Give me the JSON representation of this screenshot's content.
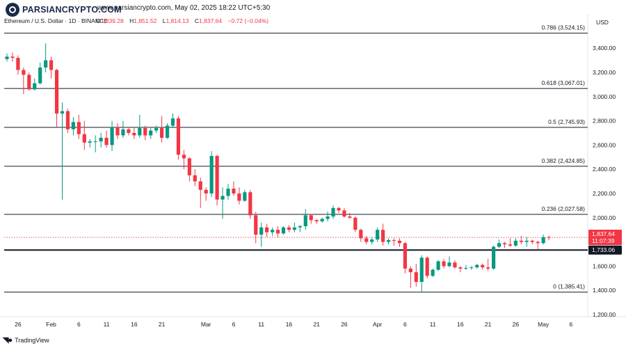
{
  "logo": {
    "text": "PARSIANCRYPTO.COM"
  },
  "headline": "www.parsiancrypto.com, May 02, 2025 18:22 UTC+5:30",
  "symbol": "Ethereum / U.S. Dollar · 1D · BINANCE",
  "ohlc": {
    "o_label": "O",
    "o": "1,839.28",
    "h_label": "H",
    "h": "1,851.52",
    "l_label": "L",
    "l": "1,814.13",
    "c_label": "C",
    "c": "1,837.64",
    "change": "−0.72 (−0.04%)"
  },
  "currency": "USD",
  "brand": {
    "text": "TradingView",
    "icon": "tradingview-logo-icon"
  },
  "colors": {
    "up": "#089981",
    "down": "#f23645",
    "level": "#131722",
    "grid_text": "#131722",
    "price_tag": "#f23645",
    "support_tag": "#131722"
  },
  "chart_data": {
    "type": "candlestick",
    "symbol": "ETHUSD",
    "timeframe": "1D",
    "ylim": [
      1200,
      3580
    ],
    "y_ticks": [
      "3,400.00",
      "3,200.00",
      "3,000.00",
      "2,800.00",
      "2,600.00",
      "2,400.00",
      "2,200.00",
      "2,000.00",
      "1,800.00",
      "1,600.00",
      "1,400.00",
      "1,200.00"
    ],
    "y_tick_values": [
      3400,
      3200,
      3000,
      2800,
      2600,
      2400,
      2200,
      2000,
      1800,
      1600,
      1400,
      1200
    ],
    "x_ticks": [
      {
        "label": "26",
        "date": "2025-01-26"
      },
      {
        "label": "Feb",
        "date": "2025-02-01"
      },
      {
        "label": "6",
        "date": "2025-02-06"
      },
      {
        "label": "11",
        "date": "2025-02-11"
      },
      {
        "label": "16",
        "date": "2025-02-16"
      },
      {
        "label": "21",
        "date": "2025-02-21"
      },
      {
        "label": "Mar",
        "date": "2025-03-01"
      },
      {
        "label": "6",
        "date": "2025-03-06"
      },
      {
        "label": "11",
        "date": "2025-03-11"
      },
      {
        "label": "16",
        "date": "2025-03-16"
      },
      {
        "label": "21",
        "date": "2025-03-21"
      },
      {
        "label": "26",
        "date": "2025-03-26"
      },
      {
        "label": "Apr",
        "date": "2025-04-01"
      },
      {
        "label": "6",
        "date": "2025-04-06"
      },
      {
        "label": "11",
        "date": "2025-04-11"
      },
      {
        "label": "16",
        "date": "2025-04-16"
      },
      {
        "label": "21",
        "date": "2025-04-21"
      },
      {
        "label": "26",
        "date": "2025-04-26"
      },
      {
        "label": "May",
        "date": "2025-05-01"
      },
      {
        "label": "6",
        "date": "2025-05-06"
      }
    ],
    "fib_levels": [
      {
        "label": "0.786 (3,524.15)",
        "value": 3524.15
      },
      {
        "label": "0.618 (3,067.01)",
        "value": 3067.01
      },
      {
        "label": "0.5 (2,745.93)",
        "value": 2745.93
      },
      {
        "label": "0.382 (2,424.85)",
        "value": 2424.85
      },
      {
        "label": "0.236 (2,027.58)",
        "value": 2027.58
      },
      {
        "label": "0 (1,385.41)",
        "value": 1385.41
      }
    ],
    "support_line": {
      "value": 1733.06,
      "label": "1,733.06"
    },
    "last_price": {
      "value": 1837.64,
      "label": "1,837.64",
      "countdown": "11:07:39"
    },
    "candles": [
      {
        "date": "2025-01-24",
        "o": 3310,
        "h": 3355,
        "l": 3290,
        "c": 3330
      },
      {
        "date": "2025-01-25",
        "o": 3330,
        "h": 3365,
        "l": 3290,
        "c": 3320
      },
      {
        "date": "2025-01-26",
        "o": 3320,
        "h": 3340,
        "l": 3180,
        "c": 3220
      },
      {
        "date": "2025-01-27",
        "o": 3220,
        "h": 3240,
        "l": 3020,
        "c": 3180
      },
      {
        "date": "2025-01-28",
        "o": 3180,
        "h": 3200,
        "l": 3050,
        "c": 3060
      },
      {
        "date": "2025-01-29",
        "o": 3060,
        "h": 3150,
        "l": 3050,
        "c": 3110
      },
      {
        "date": "2025-01-30",
        "o": 3110,
        "h": 3280,
        "l": 3100,
        "c": 3240
      },
      {
        "date": "2025-01-31",
        "o": 3240,
        "h": 3440,
        "l": 3200,
        "c": 3300
      },
      {
        "date": "2025-02-01",
        "o": 3300,
        "h": 3330,
        "l": 3150,
        "c": 3220
      },
      {
        "date": "2025-02-02",
        "o": 3220,
        "h": 3230,
        "l": 2750,
        "c": 2860
      },
      {
        "date": "2025-02-03",
        "o": 2860,
        "h": 2950,
        "l": 2150,
        "c": 2880
      },
      {
        "date": "2025-02-04",
        "o": 2880,
        "h": 2900,
        "l": 2700,
        "c": 2730
      },
      {
        "date": "2025-02-05",
        "o": 2730,
        "h": 2830,
        "l": 2680,
        "c": 2790
      },
      {
        "date": "2025-02-06",
        "o": 2790,
        "h": 2850,
        "l": 2650,
        "c": 2690
      },
      {
        "date": "2025-02-07",
        "o": 2690,
        "h": 2800,
        "l": 2560,
        "c": 2620
      },
      {
        "date": "2025-02-08",
        "o": 2620,
        "h": 2650,
        "l": 2580,
        "c": 2630
      },
      {
        "date": "2025-02-09",
        "o": 2630,
        "h": 2680,
        "l": 2540,
        "c": 2630
      },
      {
        "date": "2025-02-10",
        "o": 2630,
        "h": 2700,
        "l": 2580,
        "c": 2660
      },
      {
        "date": "2025-02-11",
        "o": 2660,
        "h": 2720,
        "l": 2580,
        "c": 2600
      },
      {
        "date": "2025-02-12",
        "o": 2600,
        "h": 2800,
        "l": 2550,
        "c": 2750
      },
      {
        "date": "2025-02-13",
        "o": 2750,
        "h": 2780,
        "l": 2650,
        "c": 2680
      },
      {
        "date": "2025-02-14",
        "o": 2680,
        "h": 2800,
        "l": 2660,
        "c": 2730
      },
      {
        "date": "2025-02-15",
        "o": 2730,
        "h": 2740,
        "l": 2680,
        "c": 2700
      },
      {
        "date": "2025-02-16",
        "o": 2700,
        "h": 2740,
        "l": 2650,
        "c": 2680
      },
      {
        "date": "2025-02-17",
        "o": 2680,
        "h": 2850,
        "l": 2660,
        "c": 2740
      },
      {
        "date": "2025-02-18",
        "o": 2740,
        "h": 2760,
        "l": 2640,
        "c": 2680
      },
      {
        "date": "2025-02-19",
        "o": 2680,
        "h": 2740,
        "l": 2650,
        "c": 2720
      },
      {
        "date": "2025-02-20",
        "o": 2720,
        "h": 2760,
        "l": 2700,
        "c": 2740
      },
      {
        "date": "2025-02-21",
        "o": 2740,
        "h": 2840,
        "l": 2620,
        "c": 2660
      },
      {
        "date": "2025-02-22",
        "o": 2660,
        "h": 2780,
        "l": 2650,
        "c": 2760
      },
      {
        "date": "2025-02-23",
        "o": 2760,
        "h": 2860,
        "l": 2740,
        "c": 2820
      },
      {
        "date": "2025-02-24",
        "o": 2820,
        "h": 2840,
        "l": 2480,
        "c": 2520
      },
      {
        "date": "2025-02-25",
        "o": 2520,
        "h": 2560,
        "l": 2400,
        "c": 2490
      },
      {
        "date": "2025-02-26",
        "o": 2490,
        "h": 2500,
        "l": 2300,
        "c": 2350
      },
      {
        "date": "2025-02-27",
        "o": 2350,
        "h": 2400,
        "l": 2260,
        "c": 2300
      },
      {
        "date": "2025-02-28",
        "o": 2300,
        "h": 2330,
        "l": 2080,
        "c": 2230
      },
      {
        "date": "2025-03-01",
        "o": 2230,
        "h": 2250,
        "l": 2140,
        "c": 2200
      },
      {
        "date": "2025-03-02",
        "o": 2200,
        "h": 2550,
        "l": 2170,
        "c": 2510
      },
      {
        "date": "2025-03-03",
        "o": 2510,
        "h": 2520,
        "l": 2100,
        "c": 2150
      },
      {
        "date": "2025-03-04",
        "o": 2150,
        "h": 2250,
        "l": 1990,
        "c": 2180
      },
      {
        "date": "2025-03-05",
        "o": 2180,
        "h": 2280,
        "l": 2150,
        "c": 2240
      },
      {
        "date": "2025-03-06",
        "o": 2240,
        "h": 2300,
        "l": 2180,
        "c": 2200
      },
      {
        "date": "2025-03-07",
        "o": 2200,
        "h": 2250,
        "l": 2110,
        "c": 2140
      },
      {
        "date": "2025-03-08",
        "o": 2140,
        "h": 2230,
        "l": 2130,
        "c": 2210
      },
      {
        "date": "2025-03-09",
        "o": 2210,
        "h": 2230,
        "l": 1990,
        "c": 2020
      },
      {
        "date": "2025-03-10",
        "o": 2020,
        "h": 2050,
        "l": 1790,
        "c": 1860
      },
      {
        "date": "2025-03-11",
        "o": 1860,
        "h": 1960,
        "l": 1760,
        "c": 1920
      },
      {
        "date": "2025-03-12",
        "o": 1920,
        "h": 1950,
        "l": 1840,
        "c": 1880
      },
      {
        "date": "2025-03-13",
        "o": 1880,
        "h": 1920,
        "l": 1850,
        "c": 1900
      },
      {
        "date": "2025-03-14",
        "o": 1900,
        "h": 1930,
        "l": 1840,
        "c": 1870
      },
      {
        "date": "2025-03-15",
        "o": 1870,
        "h": 1930,
        "l": 1860,
        "c": 1920
      },
      {
        "date": "2025-03-16",
        "o": 1920,
        "h": 1940,
        "l": 1880,
        "c": 1900
      },
      {
        "date": "2025-03-17",
        "o": 1900,
        "h": 1960,
        "l": 1880,
        "c": 1920
      },
      {
        "date": "2025-03-18",
        "o": 1920,
        "h": 1940,
        "l": 1880,
        "c": 1930
      },
      {
        "date": "2025-03-19",
        "o": 1930,
        "h": 2070,
        "l": 1900,
        "c": 2020
      },
      {
        "date": "2025-03-20",
        "o": 2020,
        "h": 2030,
        "l": 1950,
        "c": 1980
      },
      {
        "date": "2025-03-21",
        "o": 1980,
        "h": 1990,
        "l": 1950,
        "c": 1970
      },
      {
        "date": "2025-03-22",
        "o": 1970,
        "h": 2000,
        "l": 1960,
        "c": 1990
      },
      {
        "date": "2025-03-23",
        "o": 1990,
        "h": 2050,
        "l": 1970,
        "c": 2010
      },
      {
        "date": "2025-03-24",
        "o": 2010,
        "h": 2100,
        "l": 1990,
        "c": 2080
      },
      {
        "date": "2025-03-25",
        "o": 2080,
        "h": 2090,
        "l": 2040,
        "c": 2060
      },
      {
        "date": "2025-03-26",
        "o": 2060,
        "h": 2080,
        "l": 2000,
        "c": 2010
      },
      {
        "date": "2025-03-27",
        "o": 2010,
        "h": 2040,
        "l": 1990,
        "c": 2000
      },
      {
        "date": "2025-03-28",
        "o": 2000,
        "h": 2010,
        "l": 1880,
        "c": 1900
      },
      {
        "date": "2025-03-29",
        "o": 1900,
        "h": 1910,
        "l": 1800,
        "c": 1830
      },
      {
        "date": "2025-03-30",
        "o": 1830,
        "h": 1850,
        "l": 1780,
        "c": 1800
      },
      {
        "date": "2025-03-31",
        "o": 1800,
        "h": 1840,
        "l": 1780,
        "c": 1820
      },
      {
        "date": "2025-04-01",
        "o": 1820,
        "h": 1920,
        "l": 1800,
        "c": 1900
      },
      {
        "date": "2025-04-02",
        "o": 1900,
        "h": 1950,
        "l": 1770,
        "c": 1800
      },
      {
        "date": "2025-04-03",
        "o": 1800,
        "h": 1830,
        "l": 1780,
        "c": 1815
      },
      {
        "date": "2025-04-04",
        "o": 1815,
        "h": 1830,
        "l": 1770,
        "c": 1810
      },
      {
        "date": "2025-04-05",
        "o": 1810,
        "h": 1830,
        "l": 1760,
        "c": 1790
      },
      {
        "date": "2025-04-06",
        "o": 1790,
        "h": 1800,
        "l": 1540,
        "c": 1580
      },
      {
        "date": "2025-04-07",
        "o": 1580,
        "h": 1600,
        "l": 1420,
        "c": 1550
      },
      {
        "date": "2025-04-08",
        "o": 1550,
        "h": 1620,
        "l": 1430,
        "c": 1470
      },
      {
        "date": "2025-04-09",
        "o": 1470,
        "h": 1690,
        "l": 1390,
        "c": 1670
      },
      {
        "date": "2025-04-10",
        "o": 1670,
        "h": 1680,
        "l": 1500,
        "c": 1520
      },
      {
        "date": "2025-04-11",
        "o": 1520,
        "h": 1580,
        "l": 1510,
        "c": 1570
      },
      {
        "date": "2025-04-12",
        "o": 1570,
        "h": 1650,
        "l": 1560,
        "c": 1640
      },
      {
        "date": "2025-04-13",
        "o": 1640,
        "h": 1660,
        "l": 1580,
        "c": 1600
      },
      {
        "date": "2025-04-14",
        "o": 1600,
        "h": 1680,
        "l": 1590,
        "c": 1630
      },
      {
        "date": "2025-04-15",
        "o": 1630,
        "h": 1650,
        "l": 1580,
        "c": 1590
      },
      {
        "date": "2025-04-16",
        "o": 1590,
        "h": 1600,
        "l": 1550,
        "c": 1580
      },
      {
        "date": "2025-04-17",
        "o": 1580,
        "h": 1610,
        "l": 1570,
        "c": 1585
      },
      {
        "date": "2025-04-18",
        "o": 1585,
        "h": 1600,
        "l": 1570,
        "c": 1590
      },
      {
        "date": "2025-04-19",
        "o": 1590,
        "h": 1620,
        "l": 1580,
        "c": 1610
      },
      {
        "date": "2025-04-20",
        "o": 1610,
        "h": 1620,
        "l": 1570,
        "c": 1590
      },
      {
        "date": "2025-04-21",
        "o": 1590,
        "h": 1660,
        "l": 1560,
        "c": 1580
      },
      {
        "date": "2025-04-22",
        "o": 1580,
        "h": 1770,
        "l": 1570,
        "c": 1760
      },
      {
        "date": "2025-04-23",
        "o": 1760,
        "h": 1820,
        "l": 1750,
        "c": 1790
      },
      {
        "date": "2025-04-24",
        "o": 1790,
        "h": 1800,
        "l": 1750,
        "c": 1780
      },
      {
        "date": "2025-04-25",
        "o": 1780,
        "h": 1830,
        "l": 1760,
        "c": 1770
      },
      {
        "date": "2025-04-26",
        "o": 1770,
        "h": 1830,
        "l": 1760,
        "c": 1810
      },
      {
        "date": "2025-04-27",
        "o": 1810,
        "h": 1850,
        "l": 1780,
        "c": 1800
      },
      {
        "date": "2025-04-28",
        "o": 1800,
        "h": 1840,
        "l": 1760,
        "c": 1810
      },
      {
        "date": "2025-04-29",
        "o": 1810,
        "h": 1820,
        "l": 1780,
        "c": 1800
      },
      {
        "date": "2025-04-30",
        "o": 1800,
        "h": 1810,
        "l": 1740,
        "c": 1790
      },
      {
        "date": "2025-05-01",
        "o": 1790,
        "h": 1860,
        "l": 1780,
        "c": 1839
      },
      {
        "date": "2025-05-02",
        "o": 1839.28,
        "h": 1851.52,
        "l": 1814.13,
        "c": 1837.64
      }
    ]
  }
}
